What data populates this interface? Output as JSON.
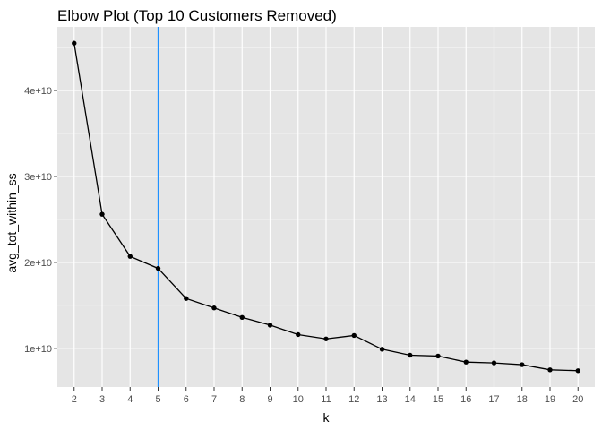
{
  "chart_data": {
    "type": "line",
    "title": "Elbow Plot (Top 10 Customers Removed)",
    "xlabel": "k",
    "ylabel": "avg_tot_within_ss",
    "x": [
      2,
      3,
      4,
      5,
      6,
      7,
      8,
      9,
      10,
      11,
      12,
      13,
      14,
      15,
      16,
      17,
      18,
      19,
      20
    ],
    "y": [
      45500000000,
      25600000000,
      20700000000,
      19300000000,
      15800000000,
      14700000000,
      13600000000,
      12700000000,
      11600000000,
      11100000000,
      11500000000,
      9900000000,
      9200000000,
      9100000000,
      8400000000,
      8300000000,
      8100000000,
      7500000000,
      7400000000
    ],
    "xlim": [
      1.4,
      20.6
    ],
    "ylim": [
      5500000000,
      47400000000
    ],
    "x_ticks": [
      2,
      3,
      4,
      5,
      6,
      7,
      8,
      9,
      10,
      11,
      12,
      13,
      14,
      15,
      16,
      17,
      18,
      19,
      20
    ],
    "y_ticks": [
      10000000000,
      20000000000,
      30000000000,
      40000000000
    ],
    "y_tick_labels": [
      "1e+10",
      "2e+10",
      "3e+10",
      "4e+10"
    ],
    "vline_x": 5,
    "grid": true,
    "colors": {
      "panel_background": "#e5e5e5",
      "grid_major": "#ffffff",
      "line": "#000000",
      "point": "#000000",
      "vline": "#1e90ff",
      "tick_label": "#4d4d4d"
    }
  }
}
